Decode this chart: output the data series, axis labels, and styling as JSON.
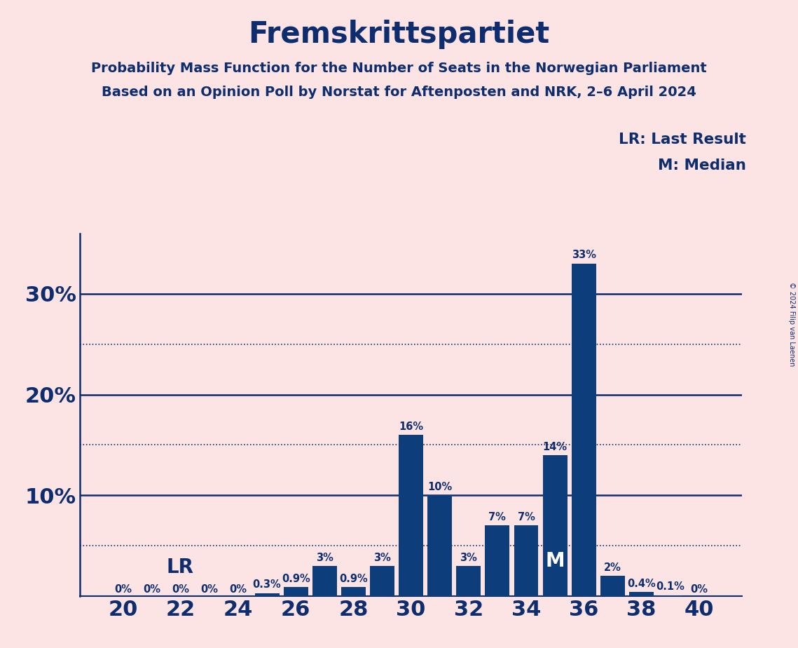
{
  "title": "Fremskrittspartiet",
  "subtitle1": "Probability Mass Function for the Number of Seats in the Norwegian Parliament",
  "subtitle2": "Based on an Opinion Poll by Norstat for Aftenposten and NRK, 2–6 April 2024",
  "copyright": "© 2024 Filip van Laenen",
  "seats": [
    20,
    21,
    22,
    23,
    24,
    25,
    26,
    27,
    28,
    29,
    30,
    31,
    32,
    33,
    34,
    35,
    36,
    37,
    38,
    39,
    40
  ],
  "values": [
    0.0,
    0.0,
    0.0,
    0.0,
    0.0,
    0.3,
    0.9,
    3.0,
    0.9,
    3.0,
    16.0,
    10.0,
    3.0,
    7.0,
    7.0,
    14.0,
    33.0,
    2.0,
    0.4,
    0.1,
    0.0
  ],
  "labels": [
    "0%",
    "0%",
    "0%",
    "0%",
    "0%",
    "0.3%",
    "0.9%",
    "3%",
    "0.9%",
    "3%",
    "16%",
    "10%",
    "3%",
    "7%",
    "7%",
    "14%",
    "33%",
    "2%",
    "0.4%",
    "0.1%",
    "0%"
  ],
  "bar_color": "#0d3d7a",
  "background_color": "#fce4e4",
  "text_color": "#0d2d6e",
  "ylim_max": 36,
  "solid_yticks": [
    10,
    20,
    30
  ],
  "dotted_yticks": [
    5,
    15,
    25
  ],
  "xtick_vals": [
    20,
    22,
    24,
    26,
    28,
    30,
    32,
    34,
    36,
    38,
    40
  ],
  "lr_value": 5.0,
  "lr_label": "LR",
  "median_seat": 35,
  "m_label": "M",
  "legend_lr": "LR: Last Result",
  "legend_m": "M: Median"
}
